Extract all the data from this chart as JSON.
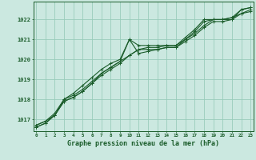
{
  "xlabel": "Graphe pression niveau de la mer (hPa)",
  "bg_color": "#cbe8e0",
  "grid_color": "#99ccbb",
  "line_color": "#1a5c2a",
  "ylim": [
    1016.4,
    1022.9
  ],
  "xlim": [
    -0.3,
    23.3
  ],
  "yticks": [
    1017,
    1018,
    1019,
    1020,
    1021,
    1022
  ],
  "xticks": [
    0,
    1,
    2,
    3,
    4,
    5,
    6,
    7,
    8,
    9,
    10,
    11,
    12,
    13,
    14,
    15,
    16,
    17,
    18,
    19,
    20,
    21,
    22,
    23
  ],
  "series": [
    [
      1016.7,
      1016.9,
      1017.3,
      1018.0,
      1018.3,
      1018.7,
      1019.1,
      1019.5,
      1019.8,
      1020.0,
      1021.0,
      1020.7,
      1020.7,
      1020.7,
      1020.7,
      1020.7,
      1021.1,
      1021.5,
      1022.0,
      1022.0,
      1022.0,
      1022.0,
      1022.5,
      1022.6
    ],
    [
      1016.7,
      1016.9,
      1017.2,
      1018.0,
      1018.2,
      1018.5,
      1018.9,
      1019.3,
      1019.6,
      1019.9,
      1020.2,
      1020.5,
      1020.6,
      1020.6,
      1020.7,
      1020.7,
      1021.0,
      1021.3,
      1021.7,
      1022.0,
      1022.0,
      1022.1,
      1022.3,
      1022.5
    ],
    [
      1016.6,
      1016.8,
      1017.2,
      1017.9,
      1018.1,
      1018.4,
      1018.8,
      1019.2,
      1019.5,
      1019.8,
      1020.2,
      1020.5,
      1020.5,
      1020.5,
      1020.6,
      1020.6,
      1020.9,
      1021.2,
      1021.6,
      1021.9,
      1021.9,
      1022.0,
      1022.3,
      1022.4
    ],
    [
      1016.6,
      1016.8,
      1017.2,
      1017.9,
      1018.1,
      1018.4,
      1018.8,
      1019.3,
      1019.6,
      1019.9,
      1021.0,
      1020.3,
      1020.4,
      1020.5,
      1020.6,
      1020.6,
      1021.0,
      1021.4,
      1021.9,
      1022.0,
      1022.0,
      1022.1,
      1022.5,
      1022.6
    ]
  ],
  "figsize": [
    3.2,
    2.0
  ],
  "dpi": 100
}
